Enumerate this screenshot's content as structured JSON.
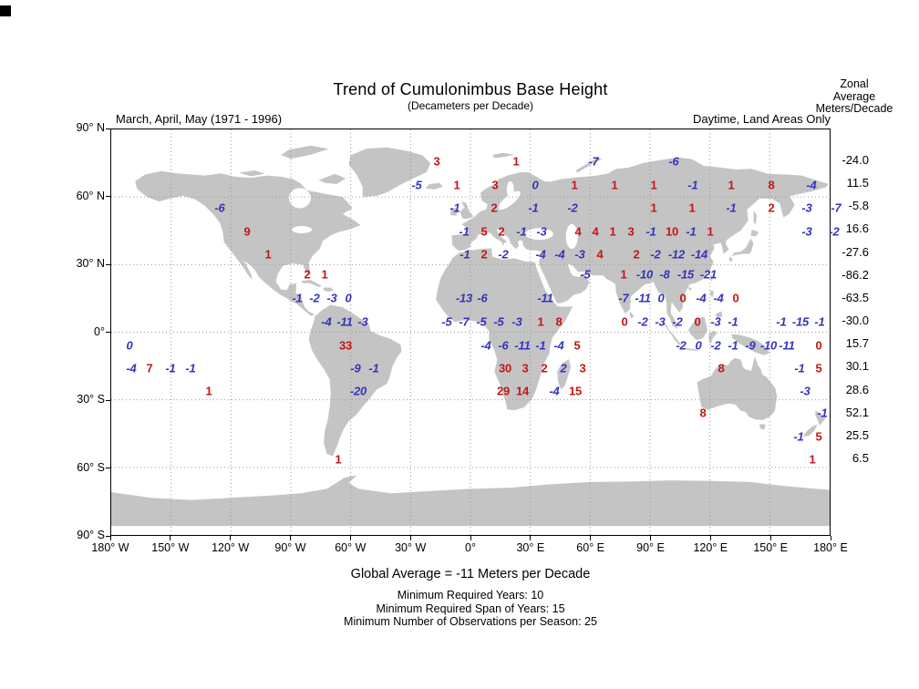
{
  "title": "Trend of Cumulonimbus Base Height",
  "subtitle": "(Decameters per Decade)",
  "zonal_header": [
    "Zonal",
    "Average",
    "Meters/Decade"
  ],
  "captions": {
    "left": "March, April, May (1971 - 1996)",
    "right": "Daytime, Land Areas Only"
  },
  "axes": {
    "lat_ticks": [
      "90° N",
      "60° N",
      "30° N",
      "0°",
      "30° S",
      "60° S",
      "90° S"
    ],
    "lon_ticks": [
      "180° W",
      "150° W",
      "120° W",
      "90° W",
      "60° W",
      "30° W",
      "0°",
      "30° E",
      "60° E",
      "90° E",
      "120° E",
      "150° E",
      "180° E"
    ]
  },
  "footer": {
    "global_average": "Global Average = -11 Meters per Decade",
    "notes": [
      "Minimum Required Years: 10",
      "Minimum Required Span of Years: 15",
      "Minimum Number of Observations per Season: 25"
    ]
  },
  "colors": {
    "positive_value": "#c41616",
    "negative_value": "#3434bb",
    "land": "#c4c4c4",
    "grid": "#9a9a9a",
    "frame": "#000000"
  },
  "chart_data": {
    "type": "map-values",
    "title": "Trend of Cumulonimbus Base Height",
    "units": "Decameters per Decade",
    "season": "March, April, May (1971 - 1996)",
    "scope": "Daytime, Land Areas Only",
    "global_average_text": "Global Average = -11 Meters per Decade",
    "zonal_average_units": "Meters/Decade",
    "zonal_average": [
      -24.0,
      11.5,
      -5.8,
      16.6,
      -27.6,
      -86.2,
      -63.5,
      -30.0,
      15.7,
      30.1,
      28.6,
      52.1,
      25.5,
      6.5
    ],
    "map_values_format": [
      "x_px",
      "y_px",
      "value",
      "color: r=red(positive) b=blue(negative)"
    ],
    "map_values": [
      [
        478,
        176,
        "3",
        "r"
      ],
      [
        565,
        176,
        "1",
        "r"
      ],
      [
        650,
        176,
        "-7",
        "b"
      ],
      [
        738,
        176,
        "-6",
        "b"
      ],
      [
        456,
        202,
        "-5",
        "b"
      ],
      [
        500,
        202,
        "1",
        "r"
      ],
      [
        542,
        202,
        "3",
        "r"
      ],
      [
        586,
        202,
        "0",
        "b"
      ],
      [
        629,
        202,
        "1",
        "r"
      ],
      [
        673,
        202,
        "1",
        "r"
      ],
      [
        716,
        202,
        "1",
        "r"
      ],
      [
        759,
        202,
        "-1",
        "b"
      ],
      [
        801,
        202,
        "1",
        "r"
      ],
      [
        845,
        202,
        "8",
        "r"
      ],
      [
        889,
        202,
        "-4",
        "b"
      ],
      [
        240,
        227,
        "-6",
        "b"
      ],
      [
        498,
        227,
        "-1",
        "b"
      ],
      [
        541,
        227,
        "2",
        "r"
      ],
      [
        584,
        227,
        "-1",
        "b"
      ],
      [
        627,
        227,
        "-2",
        "b"
      ],
      [
        716,
        227,
        "1",
        "r"
      ],
      [
        758,
        227,
        "1",
        "r"
      ],
      [
        801,
        227,
        "-1",
        "b"
      ],
      [
        845,
        227,
        "2",
        "r"
      ],
      [
        884,
        227,
        "-3",
        "b"
      ],
      [
        916,
        227,
        "-7",
        "b"
      ],
      [
        270,
        253,
        "9",
        "r"
      ],
      [
        508,
        253,
        "-1",
        "b"
      ],
      [
        530,
        253,
        "5",
        "r"
      ],
      [
        549,
        253,
        "2",
        "r"
      ],
      [
        571,
        253,
        "-1",
        "b"
      ],
      [
        593,
        253,
        "-3",
        "b"
      ],
      [
        633,
        253,
        "4",
        "r"
      ],
      [
        652,
        253,
        "4",
        "r"
      ],
      [
        671,
        253,
        "1",
        "r"
      ],
      [
        691,
        253,
        "3",
        "r"
      ],
      [
        713,
        253,
        "-1",
        "b"
      ],
      [
        736,
        253,
        "10",
        "r"
      ],
      [
        757,
        253,
        "-1",
        "b"
      ],
      [
        778,
        253,
        "1",
        "r"
      ],
      [
        884,
        253,
        "-3",
        "b"
      ],
      [
        914,
        253,
        "-2",
        "b"
      ],
      [
        293,
        278,
        "1",
        "r"
      ],
      [
        509,
        278,
        "-1",
        "b"
      ],
      [
        530,
        278,
        "2",
        "r"
      ],
      [
        551,
        278,
        "-2",
        "b"
      ],
      [
        592,
        278,
        "-4",
        "b"
      ],
      [
        613,
        278,
        "-4",
        "b"
      ],
      [
        635,
        278,
        "-3",
        "b"
      ],
      [
        657,
        278,
        "4",
        "r"
      ],
      [
        697,
        278,
        "2",
        "r"
      ],
      [
        718,
        278,
        "-2",
        "b"
      ],
      [
        741,
        278,
        "-12",
        "b"
      ],
      [
        766,
        278,
        "-14",
        "b"
      ],
      [
        336,
        300,
        "2",
        "r"
      ],
      [
        355,
        300,
        "1",
        "r"
      ],
      [
        641,
        300,
        "-5",
        "b"
      ],
      [
        683,
        300,
        "1",
        "r"
      ],
      [
        706,
        300,
        "-10",
        "b"
      ],
      [
        728,
        300,
        "-8",
        "b"
      ],
      [
        751,
        300,
        "-15",
        "b"
      ],
      [
        776,
        300,
        "-21",
        "b"
      ],
      [
        325,
        326,
        "-1",
        "b"
      ],
      [
        344,
        326,
        "-2",
        "b"
      ],
      [
        363,
        326,
        "-3",
        "b"
      ],
      [
        381,
        326,
        "0",
        "b"
      ],
      [
        508,
        326,
        "-13",
        "b"
      ],
      [
        528,
        326,
        "-6",
        "b"
      ],
      [
        597,
        326,
        "-11",
        "b"
      ],
      [
        683,
        326,
        "-7",
        "b"
      ],
      [
        704,
        326,
        "-11",
        "b"
      ],
      [
        724,
        326,
        "0",
        "b"
      ],
      [
        748,
        326,
        "0",
        "r"
      ],
      [
        768,
        326,
        "-4",
        "b"
      ],
      [
        787,
        326,
        "-4",
        "b"
      ],
      [
        806,
        326,
        "0",
        "r"
      ],
      [
        357,
        352,
        "-4",
        "b"
      ],
      [
        377,
        352,
        "-11",
        "b"
      ],
      [
        397,
        352,
        "-3",
        "b"
      ],
      [
        489,
        352,
        "-5",
        "b"
      ],
      [
        508,
        352,
        "-7",
        "b"
      ],
      [
        527,
        352,
        "-5",
        "b"
      ],
      [
        546,
        352,
        "-5",
        "b"
      ],
      [
        566,
        352,
        "-3",
        "b"
      ],
      [
        592,
        352,
        "1",
        "r"
      ],
      [
        612,
        352,
        "8",
        "r"
      ],
      [
        684,
        352,
        "0",
        "r"
      ],
      [
        704,
        352,
        "-2",
        "b"
      ],
      [
        723,
        352,
        "-3",
        "b"
      ],
      [
        742,
        352,
        "-2",
        "b"
      ],
      [
        764,
        352,
        "0",
        "r"
      ],
      [
        784,
        352,
        "-3",
        "b"
      ],
      [
        803,
        352,
        "-1",
        "b"
      ],
      [
        856,
        352,
        "-1",
        "b"
      ],
      [
        877,
        352,
        "-15",
        "b"
      ],
      [
        898,
        352,
        "-1",
        "b"
      ],
      [
        141,
        378,
        "0",
        "b"
      ],
      [
        378,
        378,
        "33",
        "r"
      ],
      [
        532,
        378,
        "-4",
        "b"
      ],
      [
        551,
        378,
        "-6",
        "b"
      ],
      [
        572,
        378,
        "-11",
        "b"
      ],
      [
        592,
        378,
        "-1",
        "b"
      ],
      [
        612,
        378,
        "-4",
        "b"
      ],
      [
        632,
        378,
        "5",
        "r"
      ],
      [
        746,
        378,
        "-2",
        "b"
      ],
      [
        765,
        378,
        "0",
        "b"
      ],
      [
        784,
        378,
        "-2",
        "b"
      ],
      [
        803,
        378,
        "-1",
        "b"
      ],
      [
        822,
        378,
        "-9",
        "b"
      ],
      [
        842,
        378,
        "-10",
        "b"
      ],
      [
        862,
        378,
        "-11",
        "b"
      ],
      [
        897,
        378,
        "0",
        "r"
      ],
      [
        143,
        403,
        "-4",
        "b"
      ],
      [
        163,
        403,
        "7",
        "r"
      ],
      [
        186,
        403,
        "-1",
        "b"
      ],
      [
        208,
        403,
        "-1",
        "b"
      ],
      [
        389,
        403,
        "-9",
        "b"
      ],
      [
        409,
        403,
        "-1",
        "b"
      ],
      [
        553,
        403,
        "30",
        "r"
      ],
      [
        575,
        403,
        "3",
        "r"
      ],
      [
        596,
        403,
        "2",
        "r"
      ],
      [
        617,
        403,
        "2",
        "b"
      ],
      [
        638,
        403,
        "3",
        "r"
      ],
      [
        790,
        403,
        "8",
        "r"
      ],
      [
        876,
        403,
        "-1",
        "b"
      ],
      [
        897,
        403,
        "5",
        "r"
      ],
      [
        228,
        428,
        "1",
        "r"
      ],
      [
        392,
        428,
        "-20",
        "b"
      ],
      [
        551,
        428,
        "29",
        "r"
      ],
      [
        572,
        428,
        "14",
        "r"
      ],
      [
        607,
        428,
        "-4",
        "b"
      ],
      [
        630,
        428,
        "15",
        "r"
      ],
      [
        882,
        428,
        "-3",
        "b"
      ],
      [
        770,
        452,
        "8",
        "r"
      ],
      [
        901,
        452,
        "-1",
        "b"
      ],
      [
        875,
        478,
        "-1",
        "b"
      ],
      [
        897,
        478,
        "5",
        "r"
      ],
      [
        370,
        503,
        "1",
        "r"
      ],
      [
        890,
        503,
        "1",
        "r"
      ]
    ]
  }
}
